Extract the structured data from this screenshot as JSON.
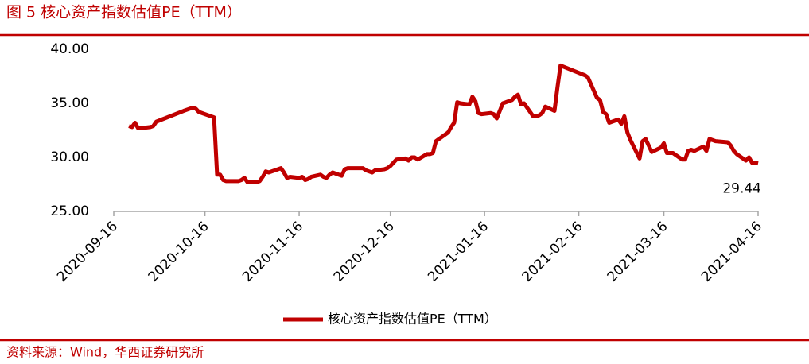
{
  "chart_data": {
    "type": "line",
    "title": "图 5  核心资产指数估值PE（TTM）",
    "source": "资料来源：Wind，华西证券研究所",
    "x": [
      "2020-09-21",
      "2020-09-22",
      "2020-09-23",
      "2020-09-24",
      "2020-09-25",
      "2020-09-28",
      "2020-09-29",
      "2020-09-30",
      "2020-10-09",
      "2020-10-12",
      "2020-10-13",
      "2020-10-14",
      "2020-10-15",
      "2020-10-16",
      "2020-10-19",
      "2020-10-20",
      "2020-10-21",
      "2020-10-22",
      "2020-10-23",
      "2020-10-26",
      "2020-10-27",
      "2020-10-28",
      "2020-10-29",
      "2020-10-30",
      "2020-11-02",
      "2020-11-03",
      "2020-11-04",
      "2020-11-05",
      "2020-11-06",
      "2020-11-09",
      "2020-11-10",
      "2020-11-11",
      "2020-11-12",
      "2020-11-13",
      "2020-11-16",
      "2020-11-17",
      "2020-11-18",
      "2020-11-19",
      "2020-11-20",
      "2020-11-23",
      "2020-11-24",
      "2020-11-25",
      "2020-11-26",
      "2020-11-27",
      "2020-11-30",
      "2020-12-01",
      "2020-12-02",
      "2020-12-03",
      "2020-12-04",
      "2020-12-07",
      "2020-12-08",
      "2020-12-09",
      "2020-12-10",
      "2020-12-11",
      "2020-12-14",
      "2020-12-15",
      "2020-12-16",
      "2020-12-17",
      "2020-12-18",
      "2020-12-21",
      "2020-12-22",
      "2020-12-23",
      "2020-12-24",
      "2020-12-25",
      "2020-12-28",
      "2020-12-29",
      "2020-12-30",
      "2020-12-31",
      "2021-01-04",
      "2021-01-05",
      "2021-01-06",
      "2021-01-07",
      "2021-01-08",
      "2021-01-11",
      "2021-01-12",
      "2021-01-13",
      "2021-01-14",
      "2021-01-15",
      "2021-01-18",
      "2021-01-19",
      "2021-01-20",
      "2021-01-21",
      "2021-01-22",
      "2021-01-25",
      "2021-01-26",
      "2021-01-27",
      "2021-01-28",
      "2021-01-29",
      "2021-02-01",
      "2021-02-02",
      "2021-02-03",
      "2021-02-04",
      "2021-02-05",
      "2021-02-08",
      "2021-02-09",
      "2021-02-10",
      "2021-02-18",
      "2021-02-19",
      "2021-02-22",
      "2021-02-23",
      "2021-02-24",
      "2021-02-25",
      "2021-02-26",
      "2021-03-01",
      "2021-03-02",
      "2021-03-03",
      "2021-03-04",
      "2021-03-05",
      "2021-03-08",
      "2021-03-09",
      "2021-03-10",
      "2021-03-11",
      "2021-03-12",
      "2021-03-15",
      "2021-03-16",
      "2021-03-17",
      "2021-03-18",
      "2021-03-19",
      "2021-03-22",
      "2021-03-23",
      "2021-03-24",
      "2021-03-25",
      "2021-03-26",
      "2021-03-29",
      "2021-03-30",
      "2021-03-31",
      "2021-04-01",
      "2021-04-02",
      "2021-04-06",
      "2021-04-07",
      "2021-04-08",
      "2021-04-09",
      "2021-04-12",
      "2021-04-13",
      "2021-04-14",
      "2021-04-15",
      "2021-04-16"
    ],
    "series": [
      {
        "name": "核心资产指数估值PE（TTM）",
        "color": "#c00000",
        "values": [
          32.9,
          32.8,
          33.2,
          32.7,
          32.7,
          32.8,
          32.9,
          33.3,
          34.3,
          34.6,
          34.5,
          34.2,
          34.1,
          34.0,
          33.7,
          28.4,
          28.4,
          27.9,
          27.8,
          27.8,
          27.8,
          27.9,
          28.1,
          27.7,
          27.7,
          27.8,
          28.2,
          28.7,
          28.6,
          28.9,
          29.0,
          28.6,
          28.1,
          28.2,
          28.1,
          28.2,
          27.9,
          28.0,
          28.2,
          28.4,
          28.2,
          28.1,
          28.4,
          28.6,
          28.3,
          28.9,
          29.0,
          29.0,
          29.0,
          29.0,
          28.8,
          28.7,
          28.6,
          28.8,
          28.9,
          29.0,
          29.2,
          29.5,
          29.8,
          29.9,
          29.7,
          30.0,
          30.0,
          29.8,
          30.3,
          30.3,
          30.4,
          31.5,
          32.3,
          32.8,
          33.2,
          35.1,
          35.0,
          34.9,
          35.6,
          35.2,
          34.1,
          34.0,
          34.1,
          34.0,
          33.6,
          34.3,
          35.0,
          35.3,
          35.6,
          35.8,
          34.9,
          35.0,
          33.8,
          33.8,
          33.9,
          34.1,
          34.7,
          34.3,
          36.5,
          38.5,
          37.6,
          37.4,
          35.5,
          35.3,
          34.2,
          34.0,
          33.2,
          33.5,
          33.1,
          33.8,
          32.3,
          31.6,
          29.9,
          31.5,
          31.7,
          31.1,
          30.5,
          30.9,
          31.3,
          30.4,
          30.4,
          30.4,
          29.8,
          29.8,
          30.6,
          30.7,
          30.6,
          31.0,
          30.6,
          31.7,
          31.6,
          31.5,
          31.4,
          31.1,
          30.6,
          30.3,
          29.7,
          30.0,
          29.5,
          29.5,
          29.44
        ]
      }
    ],
    "xlim": [
      "2020-09-16",
      "2021-04-16"
    ],
    "xticks": [
      "2020-09-16",
      "2020-10-16",
      "2020-11-16",
      "2020-12-16",
      "2021-01-16",
      "2021-02-16",
      "2021-03-16",
      "2021-04-16"
    ],
    "ylim": [
      25,
      40
    ],
    "yticks": [
      {
        "value": 25,
        "label": "25.00"
      },
      {
        "value": 30,
        "label": "30.00"
      },
      {
        "value": 35,
        "label": "35.00"
      },
      {
        "value": 40,
        "label": "40.00"
      }
    ],
    "grid": false,
    "last_value_label": true
  }
}
